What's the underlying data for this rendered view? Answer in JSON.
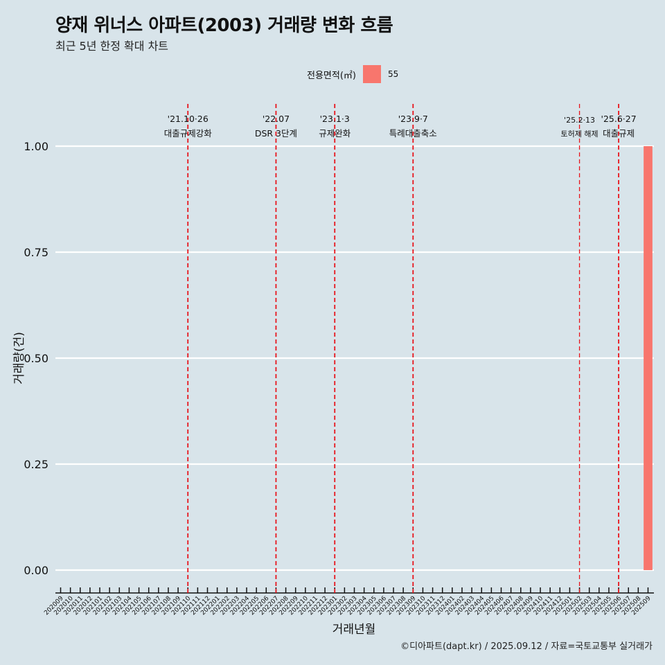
{
  "header": {
    "title": "양재 위너스 아파트(2003) 거래량 변화 흐름",
    "subtitle": "최근 5년 한정 확대 차트"
  },
  "legend": {
    "title": "전용면적(㎡)",
    "items": [
      {
        "label": "55",
        "color": "#f8766d"
      }
    ]
  },
  "caption": "©디아파트(dapt.kr) / 2025.09.12 / 자료=국토교통부 실거래가",
  "chart_data": {
    "type": "bar",
    "title": "양재 위너스 아파트(2003) 거래량 변화 흐름",
    "subtitle": "최근 5년 한정 확대 차트",
    "xlabel": "거래년월",
    "ylabel": "거래량(건)",
    "ylim": [
      0,
      1
    ],
    "yticks": [
      0,
      0.25,
      0.5,
      0.75,
      1
    ],
    "ytick_labels": [
      "0.00",
      "0.25",
      "0.50",
      "0.75",
      "1.00"
    ],
    "categories": [
      "202009",
      "202010",
      "202011",
      "202012",
      "202101",
      "202102",
      "202103",
      "202104",
      "202105",
      "202106",
      "202107",
      "202108",
      "202109",
      "202110",
      "202111",
      "202112",
      "202201",
      "202202",
      "202203",
      "202204",
      "202205",
      "202206",
      "202207",
      "202208",
      "202209",
      "202210",
      "202211",
      "202212",
      "202301",
      "202302",
      "202303",
      "202304",
      "202305",
      "202306",
      "202307",
      "202308",
      "202309",
      "202310",
      "202311",
      "202312",
      "202401",
      "202402",
      "202403",
      "202404",
      "202405",
      "202406",
      "202407",
      "202408",
      "202409",
      "202410",
      "202411",
      "202412",
      "202501",
      "202502",
      "202503",
      "202504",
      "202505",
      "202506",
      "202507",
      "202508",
      "202509"
    ],
    "series": [
      {
        "name": "55",
        "color": "#f8766d",
        "values": [
          0,
          0,
          0,
          0,
          0,
          0,
          0,
          0,
          0,
          0,
          0,
          0,
          0,
          0,
          0,
          0,
          0,
          0,
          0,
          0,
          0,
          0,
          0,
          0,
          0,
          0,
          0,
          0,
          0,
          0,
          0,
          0,
          0,
          0,
          0,
          0,
          0,
          0,
          0,
          0,
          0,
          0,
          0,
          0,
          0,
          0,
          0,
          0,
          0,
          0,
          0,
          0,
          0,
          0,
          0,
          0,
          0,
          0,
          0,
          0,
          1
        ]
      }
    ],
    "annotations": [
      {
        "x": "202110",
        "line1": "'21.10·26",
        "line2": "대출규제강화",
        "small": false
      },
      {
        "x": "202207",
        "line1": "'22.07",
        "line2": "DSR 3단계",
        "small": false
      },
      {
        "x": "202301",
        "line1": "'23.1·3",
        "line2": "규제완화",
        "small": false
      },
      {
        "x": "202309",
        "line1": "'23.9·7",
        "line2": "특례대출축소",
        "small": false
      },
      {
        "x": "202502",
        "line1": "'25.2·13",
        "line2": "토허제 해제",
        "small": true
      },
      {
        "x": "202506",
        "line1": "'25.6·27",
        "line2": "대출규제",
        "small": false
      }
    ]
  }
}
